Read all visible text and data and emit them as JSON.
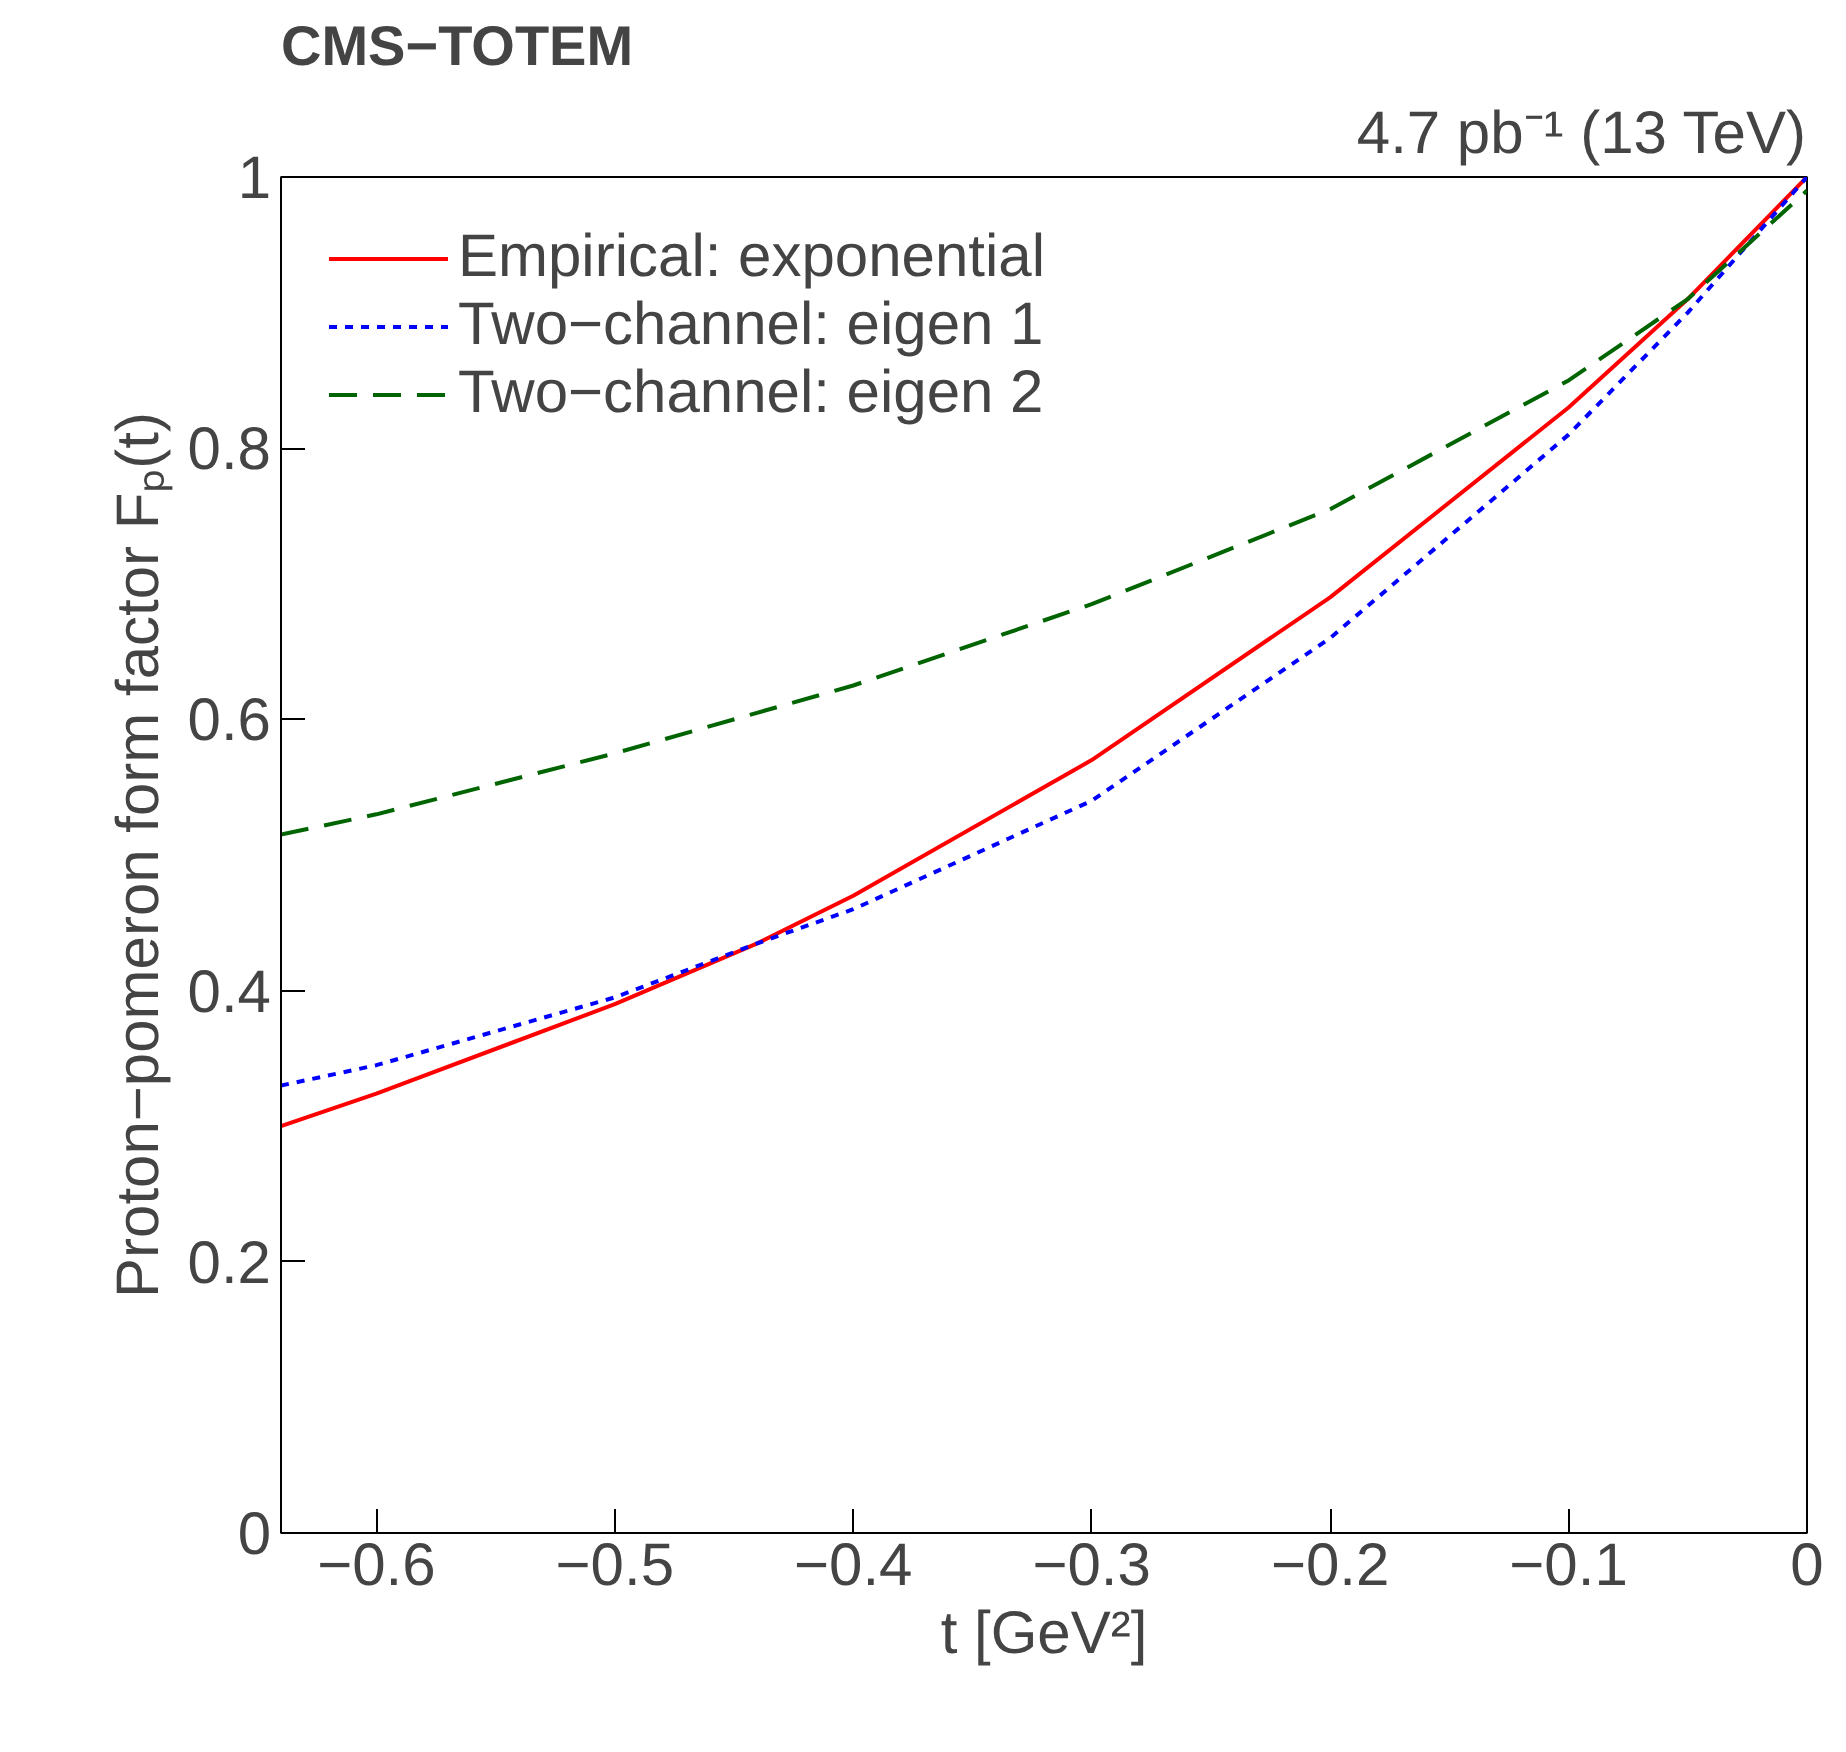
{
  "chart_data": {
    "type": "line",
    "title": "CMS−TOTEM",
    "subtitle": "4.7 pb⁻¹ (13 TeV)",
    "xlabel": "t [GeV²]",
    "ylabel": "Proton−pomeron form factor Fₚ(t)",
    "xlim": [
      -0.64,
      0
    ],
    "ylim": [
      0,
      1
    ],
    "xticks": [
      {
        "value": -0.6,
        "label": "−0.6"
      },
      {
        "value": -0.5,
        "label": "−0.5"
      },
      {
        "value": -0.4,
        "label": "−0.4"
      },
      {
        "value": -0.3,
        "label": "−0.3"
      },
      {
        "value": -0.2,
        "label": "−0.2"
      },
      {
        "value": -0.1,
        "label": "−0.1"
      },
      0
    ],
    "yticks": [
      0,
      0.2,
      0.4,
      0.6,
      0.8,
      1
    ],
    "x": [
      -0.64,
      -0.6,
      -0.5,
      -0.44,
      -0.4,
      -0.3,
      -0.2,
      -0.1,
      -0.05,
      0
    ],
    "series": [
      {
        "name": "Empirical: exponential",
        "color": "#ff0000",
        "line_style": "solid",
        "values": [
          0.3,
          0.324,
          0.39,
          0.435,
          0.47,
          0.57,
          0.69,
          0.83,
          0.91,
          1.0
        ]
      },
      {
        "name": "Two−channel: eigen 1",
        "color": "#0000ff",
        "line_style": "dotted",
        "values": [
          0.33,
          0.345,
          0.395,
          0.435,
          0.46,
          0.54,
          0.66,
          0.81,
          0.9,
          1.0
        ]
      },
      {
        "name": "Two−channel: eigen 2",
        "color": "#006400",
        "line_style": "dashed",
        "values": [
          0.515,
          0.53,
          0.575,
          0.605,
          0.625,
          0.685,
          0.755,
          0.85,
          0.91,
          0.99
        ]
      }
    ],
    "legend": "top left",
    "grid": false,
    "marker": "none"
  }
}
